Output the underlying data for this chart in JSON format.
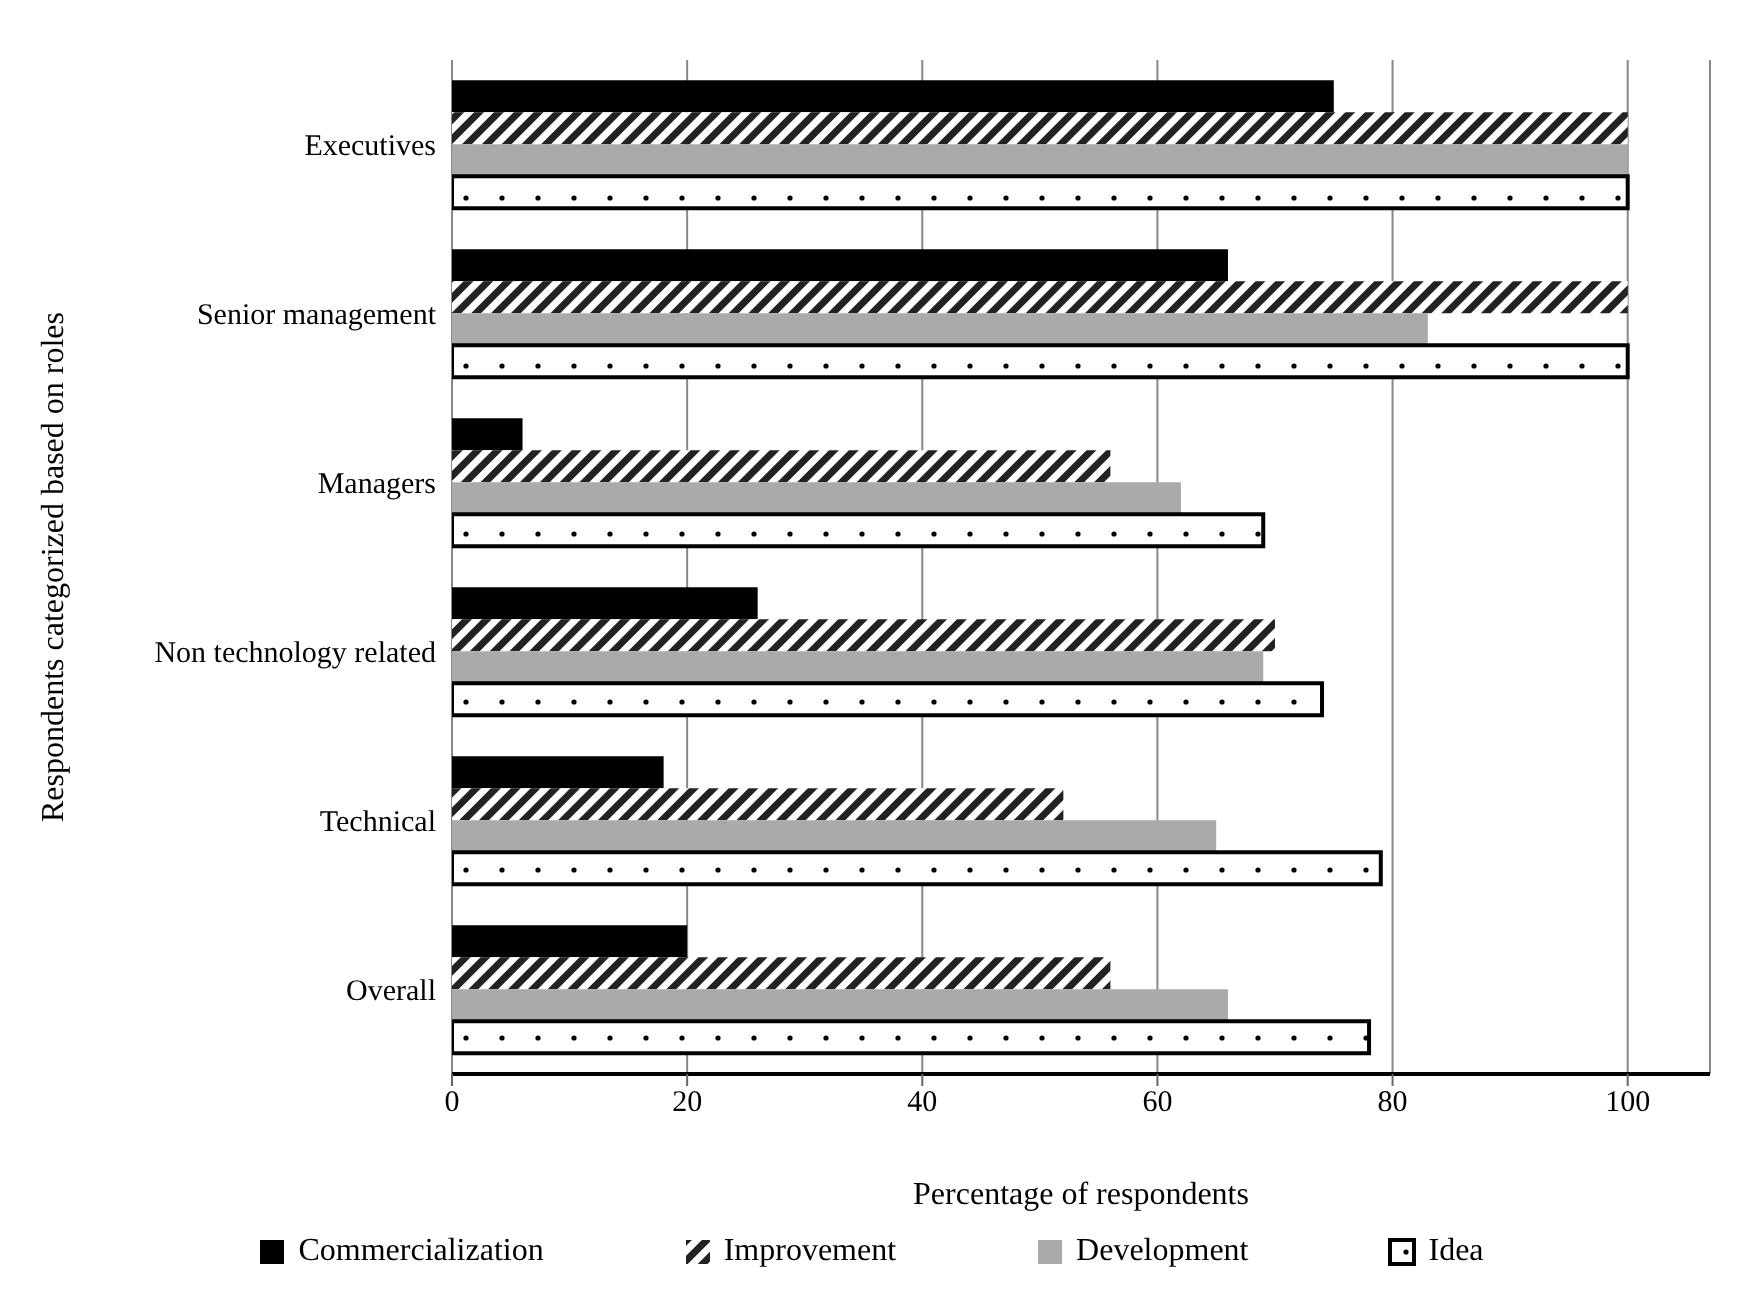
{
  "chart_data": {
    "type": "bar",
    "orientation": "horizontal",
    "xlabel": "Percentage of respondents",
    "ylabel": "Respondents categorized based on roles",
    "categories": [
      "Executives",
      "Senior management",
      "Managers",
      "Non technology related",
      "Technical",
      "Overall"
    ],
    "series": [
      {
        "name": "Commercialization",
        "color": "#000000",
        "values": [
          75,
          66,
          6,
          26,
          18,
          20
        ]
      },
      {
        "name": "Improvement",
        "color": "#222222",
        "values": [
          100,
          100,
          56,
          70,
          52,
          56
        ]
      },
      {
        "name": "Development",
        "color": "#aaaaaa",
        "values": [
          100,
          83,
          62,
          69,
          65,
          66
        ]
      },
      {
        "name": "Idea",
        "color": "#000000",
        "values": [
          100,
          100,
          69,
          74,
          79,
          78
        ]
      }
    ],
    "xlim": [
      0,
      107
    ],
    "xticks": [
      0,
      20,
      40,
      60,
      80,
      100
    ],
    "grid": "x",
    "legend": "bottom"
  }
}
